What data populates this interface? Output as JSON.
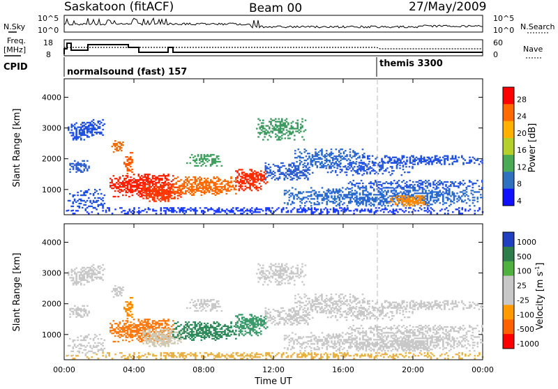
{
  "header": {
    "station": "Saskatoon (fitACF)",
    "beam": "Beam 00",
    "date": "27/May/2009"
  },
  "top_panels": {
    "nsky_label": "N.Sky",
    "nsearch_label": "N.Search",
    "sky_ticks": [
      "10^5",
      "10^0"
    ],
    "freq_label_1": "Freq.",
    "freq_label_2": "[MHz]",
    "freq_ticks": [
      "18",
      "8"
    ],
    "nave_ticks": [
      "60",
      "0"
    ],
    "nave_label": "Nave",
    "cpid_label": "CPID",
    "cpid_1": "normalsound (fast) 157",
    "cpid_2": "themis 3300"
  },
  "chart_data": {
    "type": "heatmap",
    "x_ticks": [
      "00:00",
      "04:00",
      "08:00",
      "12:00",
      "16:00",
      "20:00",
      "00:00"
    ],
    "x_hours": [
      0,
      4,
      8,
      12,
      16,
      20,
      24
    ],
    "xlabel": "Time UT",
    "ylabel": "Slant Range [km]",
    "y_ticks": [
      1000,
      2000,
      3000,
      4000
    ],
    "ylim": [
      180,
      4600
    ],
    "power_colorbar": {
      "label": "Power [dB]",
      "ticks": [
        "28",
        "24",
        "20",
        "16",
        "12",
        "8",
        "4"
      ],
      "colors": [
        "#ff0000",
        "#ff6a00",
        "#ffb000",
        "#b5d02a",
        "#4aaa55",
        "#3070c0",
        "#1010ff"
      ]
    },
    "velocity_colorbar": {
      "label": "Velocity [m s",
      "label_sup": "-1",
      "label_end": "]",
      "ticks": [
        "1000",
        "500",
        "100",
        "25",
        "-25",
        "-100",
        "-500",
        "-1000"
      ],
      "colors": [
        "#2040c0",
        "#2e7d4a",
        "#50b040",
        "#c8c8c8",
        "#c8c8c8",
        "#ff9a00",
        "#ff6000",
        "#ff0000"
      ]
    },
    "blobs": [
      {
        "t0": 0.1,
        "t1": 24,
        "r0": 200,
        "r1": 420,
        "p": "#1a3cff",
        "v": "#e8b040",
        "d": 0.35
      },
      {
        "t0": 0.2,
        "t1": 1.6,
        "r0": 2600,
        "r1": 3150,
        "p": "#2050e0",
        "v": "#c8c8c8",
        "d": 0.45
      },
      {
        "t0": 1.0,
        "t1": 2.4,
        "r0": 2750,
        "r1": 3250,
        "p": "#2050e0",
        "v": "#c8c8c8",
        "d": 0.4
      },
      {
        "t0": 0.2,
        "t1": 1.4,
        "r0": 1550,
        "r1": 1950,
        "p": "#2f5fd0",
        "v": "#c8c8c8",
        "d": 0.45
      },
      {
        "t0": 2.7,
        "t1": 3.4,
        "r0": 2200,
        "r1": 2600,
        "p": "#e87010",
        "v": "#c8c8c8",
        "d": 0.45
      },
      {
        "t0": 3.4,
        "t1": 3.9,
        "r0": 1500,
        "r1": 2200,
        "p": "#ff5a00",
        "v": "#ff8c00",
        "d": 0.4
      },
      {
        "t0": 2.6,
        "t1": 6.2,
        "r0": 750,
        "r1": 1500,
        "p": "#ff2000",
        "v": "#ff7a10",
        "d": 0.6
      },
      {
        "t0": 4.4,
        "t1": 6.8,
        "r0": 600,
        "r1": 1150,
        "p": "#ff3a00",
        "v": "#d0c8b0",
        "d": 0.55
      },
      {
        "t0": 6.2,
        "t1": 9.8,
        "r0": 800,
        "r1": 1400,
        "p": "#ff6a00",
        "v": "#2e8a5a",
        "d": 0.55
      },
      {
        "t0": 9.8,
        "t1": 11.6,
        "r0": 950,
        "r1": 1650,
        "p": "#ff2a00",
        "v": "#3a9a6a",
        "d": 0.55
      },
      {
        "t0": 7.0,
        "t1": 9.0,
        "r0": 1750,
        "r1": 2150,
        "p": "#40a060",
        "v": "#c8c8c8",
        "d": 0.4
      },
      {
        "t0": 11.0,
        "t1": 13.8,
        "r0": 2600,
        "r1": 3300,
        "p": "#3c9a60",
        "v": "#c8c8c8",
        "d": 0.4
      },
      {
        "t0": 11.5,
        "t1": 14.2,
        "r0": 1300,
        "r1": 1850,
        "p": "#2f5fd0",
        "v": "#c8c8c8",
        "d": 0.4
      },
      {
        "t0": 13.2,
        "t1": 17.2,
        "r0": 1700,
        "r1": 2300,
        "p": "#2a6ad0",
        "v": "#c8c8c8",
        "d": 0.4
      },
      {
        "t0": 14.8,
        "t1": 20.0,
        "r0": 1450,
        "r1": 1900,
        "p": "#2a5ae0",
        "v": "#c8c8c8",
        "d": 0.35
      },
      {
        "t0": 17.0,
        "t1": 24.0,
        "r0": 1800,
        "r1": 2100,
        "p": "#2050e0",
        "v": "#c8c8c8",
        "d": 0.4
      },
      {
        "t0": 12.5,
        "t1": 24.0,
        "r0": 450,
        "r1": 1050,
        "p": "#2a6ad0",
        "v": "#c8c8c8",
        "d": 0.45
      },
      {
        "t0": 18.5,
        "t1": 20.8,
        "r0": 450,
        "r1": 800,
        "p": "#ff8a00",
        "v": "#c8c8c8",
        "d": 0.55
      },
      {
        "t0": 16.0,
        "t1": 24.0,
        "r0": 1000,
        "r1": 1300,
        "p": "#2a5ae0",
        "v": "#c8c8c8",
        "d": 0.35
      },
      {
        "t0": 0.1,
        "t1": 2.5,
        "r0": 300,
        "r1": 1000,
        "p": "#2050e0",
        "v": "#c8c8c8",
        "d": 0.25
      }
    ]
  }
}
